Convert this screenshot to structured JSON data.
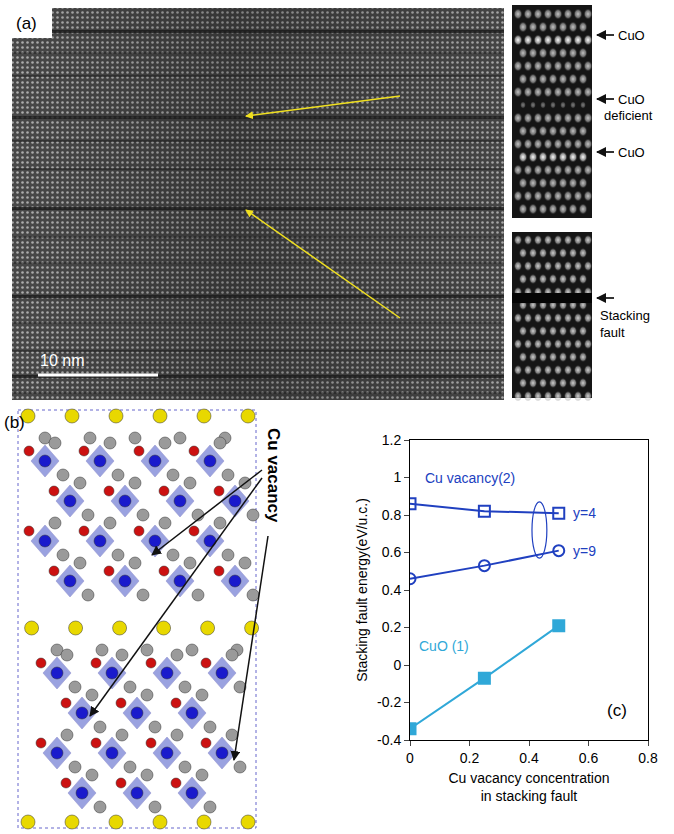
{
  "panels": {
    "a": {
      "label": "(a)",
      "scale_bar": "10 nm",
      "inset_labels": [
        "CuO",
        "CuO deficient",
        "CuO"
      ],
      "stacking_fault_label": "Stacking fault"
    },
    "b": {
      "label": "(b)",
      "annotation": "Cu vacancy"
    }
  },
  "chart_data": {
    "type": "scatter",
    "annotations": [
      "(c)",
      "Cu vacancy(2)"
    ],
    "x_label": "Cu vacancy concentration in stacking fault",
    "y_label": "Stacking fault energy(eV/u.c.)",
    "x": [
      0,
      0.25,
      0.5
    ],
    "xlim": [
      0,
      0.8
    ],
    "xticks": [
      0,
      0.2,
      0.4,
      0.6,
      0.8
    ],
    "ylim": [
      -0.4,
      1.2
    ],
    "yticks": [
      -0.4,
      -0.2,
      0,
      0.2,
      0.4,
      0.6,
      0.8,
      1,
      1.2
    ],
    "grid": false,
    "series": [
      {
        "name": "y=4",
        "color": "#2040c0",
        "marker": "square-open",
        "line_style": "solid",
        "values": [
          0.86,
          0.82,
          0.81
        ]
      },
      {
        "name": "y=9",
        "color": "#2040c0",
        "marker": "circle-open",
        "line_style": "solid",
        "values": [
          0.46,
          0.53,
          0.61
        ]
      },
      {
        "name": "CuO (1)",
        "color": "#30a8d8",
        "marker": "square",
        "line_style": "solid",
        "values": [
          -0.34,
          -0.07,
          0.21
        ]
      }
    ]
  }
}
